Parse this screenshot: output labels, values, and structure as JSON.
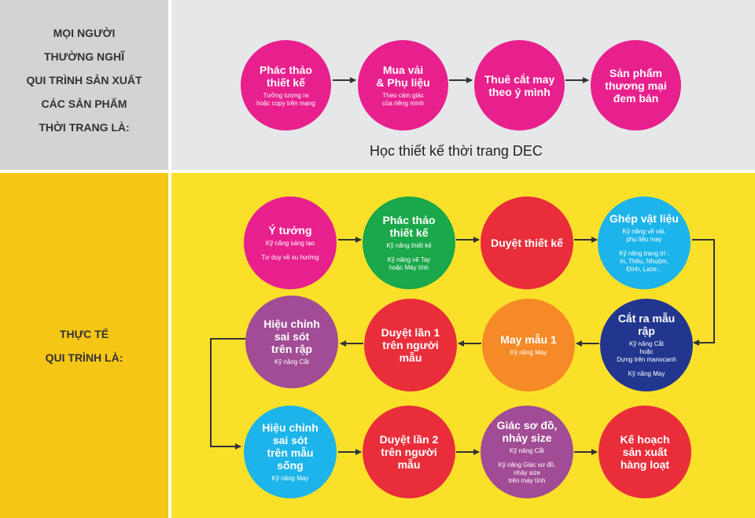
{
  "top": {
    "side_lines": [
      "MỌI NGƯỜI",
      "THƯỜNG NGHĨ",
      "QUI TRÌNH SẢN XUẤT",
      "CÁC SẢN PHẨM",
      "THỜI TRANG LÀ:"
    ],
    "steps": [
      {
        "title": "Phác thảo\nthiết kế",
        "sub": "Tưởng tượng ra\nhoặc copy trên mạng",
        "color": "#e8208d"
      },
      {
        "title": "Mua vải\n& Phụ liệu",
        "sub": "Theo cảm giác\ncủa riêng mình",
        "color": "#e8208d"
      },
      {
        "title": "Thuê cắt may\ntheo ý mình",
        "sub": "",
        "color": "#e8208d"
      },
      {
        "title": "Sản phẩm\nthương mại\nđem bán",
        "sub": "",
        "color": "#e8208d"
      }
    ],
    "tagline": "Học thiết kế thời trang DEC"
  },
  "bottom": {
    "side_lines": [
      "THỰC TẾ",
      "QUI TRÌNH LÀ:"
    ],
    "steps": [
      {
        "title": "Ý tưởng",
        "sub": "Kỹ năng sáng tạo",
        "sub2": "Tư duy về xu hướng",
        "color": "#e8208d"
      },
      {
        "title": "Phác thảo\nthiết kế",
        "sub": "Kỹ năng thiết kế",
        "sub2": "Kỹ năng vẽ Tay\nhoặc Máy tính",
        "color": "#1aa84a"
      },
      {
        "title": "Duyệt thiết kế",
        "sub": "",
        "sub2": "",
        "color": "#ea2d3a"
      },
      {
        "title": "Ghép vật liệu",
        "sub": "Kỹ năng về vải,\nphụ liệu may",
        "sub2": "Kỹ năng trang trí :\nIn, Thêu, Nhuộm,\nĐính, Laze...",
        "color": "#1cb4ea"
      },
      {
        "title": "Cắt ra mẫu rập",
        "sub": "Kỹ năng Cắt\nhoặc\nDựng trên manocanh",
        "sub2": "Kỹ năng May",
        "color": "#22368f"
      },
      {
        "title": "May mẫu 1",
        "sub": "Kỹ năng May",
        "sub2": "",
        "color": "#f58a26"
      },
      {
        "title": "Duyệt lần 1\ntrên người mẫu",
        "sub": "",
        "sub2": "",
        "color": "#ea2d3a"
      },
      {
        "title": "Hiệu chỉnh\nsai sót\ntrên rập",
        "sub": "Kỹ năng Cắt",
        "sub2": "",
        "color": "#a14c95"
      },
      {
        "title": "Hiệu chỉnh\nsai sót\ntrên mẫu sống",
        "sub": "Kỹ năng May",
        "sub2": "",
        "color": "#1cb4ea"
      },
      {
        "title": "Duyệt lần 2\ntrên người mẫu",
        "sub": "",
        "sub2": "",
        "color": "#ea2d3a"
      },
      {
        "title": "Giác sơ đồ,\nnhảy size",
        "sub": "Kỹ năng Cắt",
        "sub2": "Kỹ năng Giác sơ đồ,\nnhảy size\ntrên máy tính",
        "color": "#a14c95"
      },
      {
        "title": "Kế hoạch\nsản xuất\nhàng loạt",
        "sub": "",
        "sub2": "",
        "color": "#ea2d3a"
      }
    ]
  }
}
